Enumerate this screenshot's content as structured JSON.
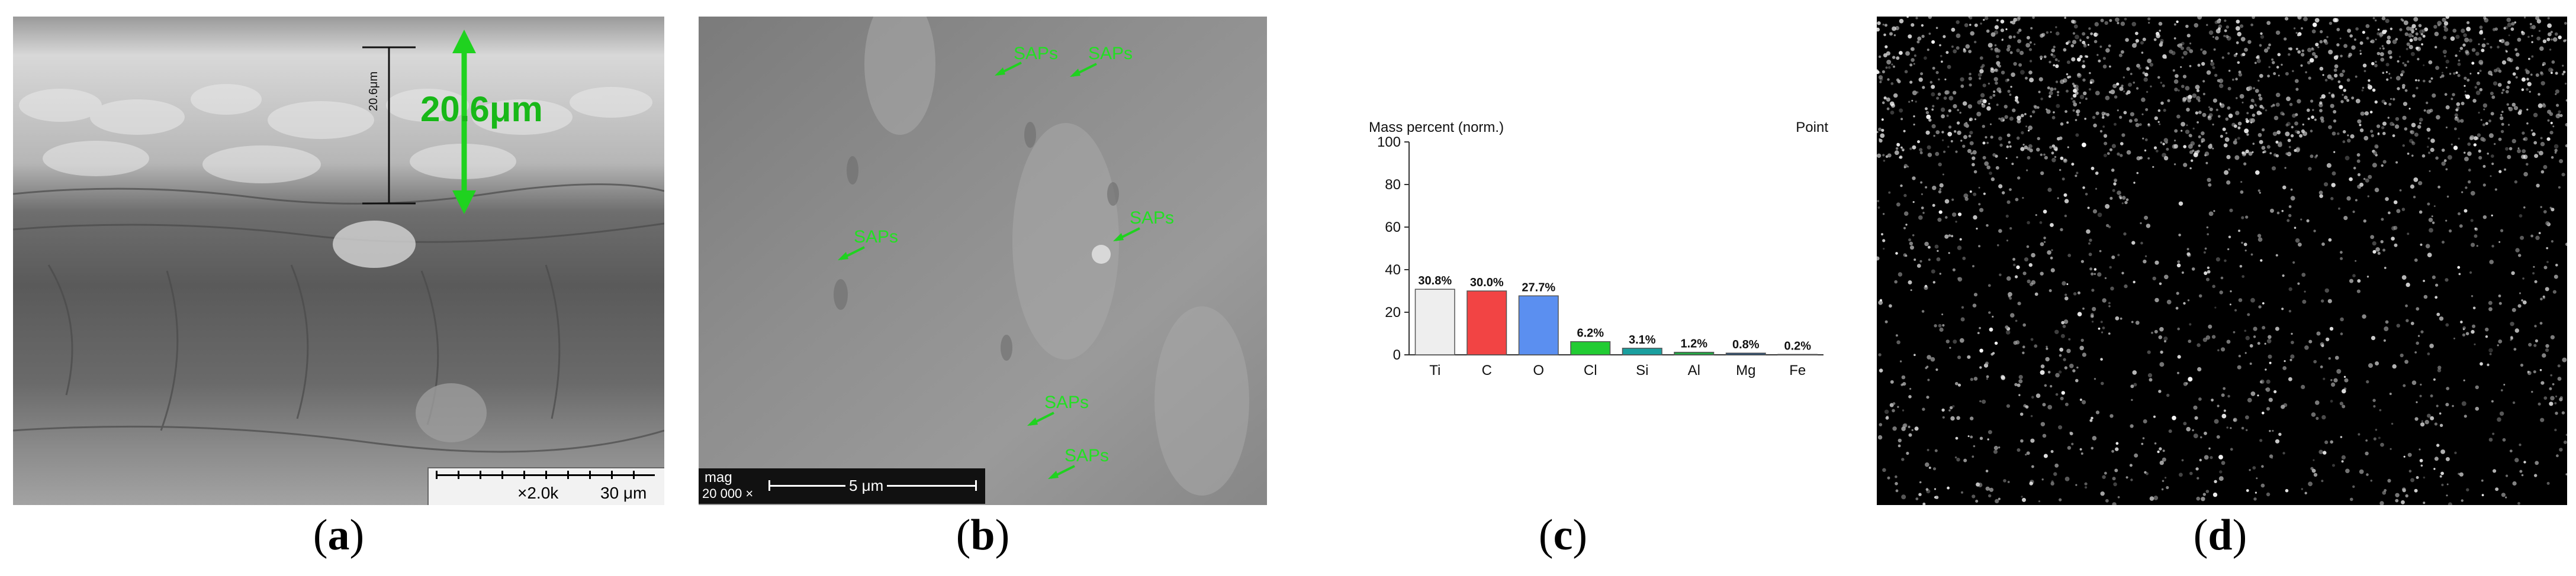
{
  "panels": {
    "a": {
      "label": "a",
      "annotation": "20.6μm",
      "small_annotation": "20.6μm",
      "scale_mag": "×2.0k",
      "scale_length": "30 μm"
    },
    "b": {
      "label": "b",
      "markers": [
        "SAPs",
        "SAPs",
        "SAPs",
        "SAPs",
        "SAPs",
        "SAPs"
      ],
      "mag_label": "mag",
      "mag_value": "20 000 ×",
      "scale_length": "5 μm"
    },
    "c": {
      "label": "c"
    },
    "d": {
      "label": "d"
    }
  },
  "chart_data": {
    "type": "bar",
    "title": "Mass percent (norm.)",
    "corner_label": "Point",
    "categories": [
      "Ti",
      "C",
      "O",
      "Cl",
      "Si",
      "Al",
      "Mg",
      "Fe"
    ],
    "values": [
      30.8,
      30.0,
      27.7,
      6.2,
      3.1,
      1.2,
      0.8,
      0.2
    ],
    "value_labels": [
      "30.8%",
      "30.0%",
      "27.7%",
      "6.2%",
      "3.1%",
      "1.2%",
      "0.8%",
      "0.2%"
    ],
    "colors": [
      "#eeeeee",
      "#f24444",
      "#5b8ff0",
      "#22cc33",
      "#1a9f9f",
      "#22aa44",
      "#1f4f7f",
      "#cfe8cf"
    ],
    "ylim": [
      0,
      100
    ],
    "yticks": [
      "0",
      "20",
      "40",
      "60",
      "80",
      "100"
    ],
    "grid": false
  }
}
